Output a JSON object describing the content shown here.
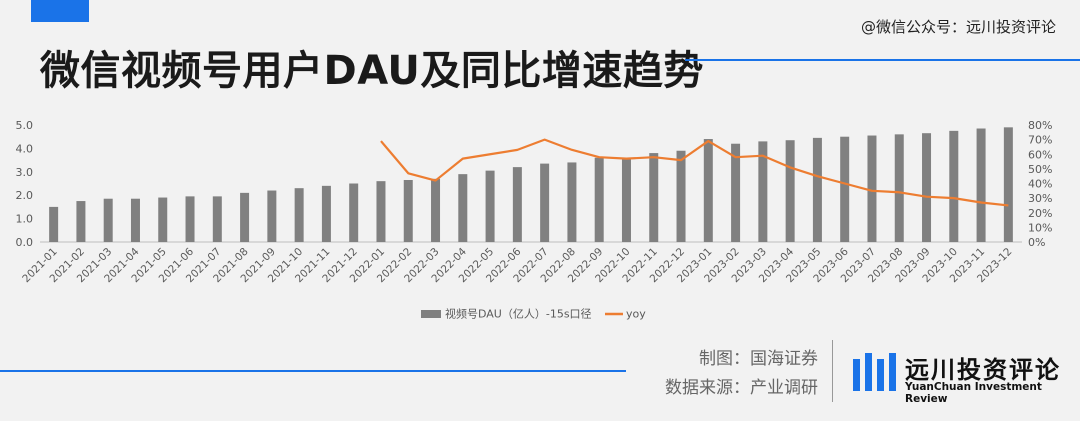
{
  "header": {
    "title": "微信视频号用户DAU及同比增速趋势",
    "watermark": "@微信公众号：远川投资评论"
  },
  "footer": {
    "maker": "制图：国海证券",
    "source": "数据来源：产业调研",
    "logo_cn": "远川投资评论",
    "logo_en": "YuanChuan Investment Review"
  },
  "colors": {
    "bar": "#808080",
    "line": "#ed7d31",
    "accent": "#1a73e8"
  },
  "chart_data": {
    "type": "bar",
    "categories": [
      "2021-01",
      "2021-02",
      "2021-03",
      "2021-04",
      "2021-05",
      "2021-06",
      "2021-07",
      "2021-08",
      "2021-09",
      "2021-10",
      "2021-11",
      "2021-12",
      "2022-01",
      "2022-02",
      "2022-03",
      "2022-04",
      "2022-05",
      "2022-06",
      "2022-07",
      "2022-08",
      "2022-09",
      "2022-10",
      "2022-11",
      "2022-12",
      "2023-01",
      "2023-02",
      "2023-03",
      "2023-04",
      "2023-05",
      "2023-06",
      "2023-07",
      "2023-08",
      "2023-09",
      "2023-10",
      "2023-11",
      "2023-12"
    ],
    "series": [
      {
        "name": "视频号DAU（亿人）-15s口径",
        "type": "bar",
        "axis": "left",
        "values": [
          1.5,
          1.75,
          1.85,
          1.85,
          1.9,
          1.95,
          1.95,
          2.1,
          2.2,
          2.3,
          2.4,
          2.5,
          2.6,
          2.65,
          2.7,
          2.9,
          3.05,
          3.2,
          3.35,
          3.4,
          3.6,
          3.6,
          3.8,
          3.9,
          4.4,
          4.2,
          4.3,
          4.35,
          4.45,
          4.5,
          4.55,
          4.6,
          4.65,
          4.75,
          4.85,
          4.9
        ]
      },
      {
        "name": "yoy",
        "type": "line",
        "axis": "right",
        "values": [
          null,
          null,
          null,
          null,
          null,
          null,
          null,
          null,
          null,
          null,
          null,
          null,
          0.69,
          0.47,
          0.42,
          0.57,
          0.6,
          0.63,
          0.7,
          0.63,
          0.58,
          0.57,
          0.58,
          0.56,
          0.69,
          0.58,
          0.59,
          0.51,
          0.45,
          0.4,
          0.35,
          0.34,
          0.31,
          0.3,
          0.27,
          0.25
        ]
      }
    ],
    "left_axis": {
      "ticks": [
        "0.0",
        "1.0",
        "2.0",
        "3.0",
        "4.0",
        "5.0"
      ],
      "ylim": [
        0,
        5
      ]
    },
    "right_axis": {
      "ticks": [
        "0%",
        "10%",
        "20%",
        "30%",
        "40%",
        "50%",
        "60%",
        "70%",
        "80%"
      ],
      "ylim": [
        0,
        0.8
      ]
    },
    "legend": {
      "position": "bottom",
      "bar_label": "视频号DAU（亿人）-15s口径",
      "line_label": "yoy"
    },
    "grid": false
  }
}
